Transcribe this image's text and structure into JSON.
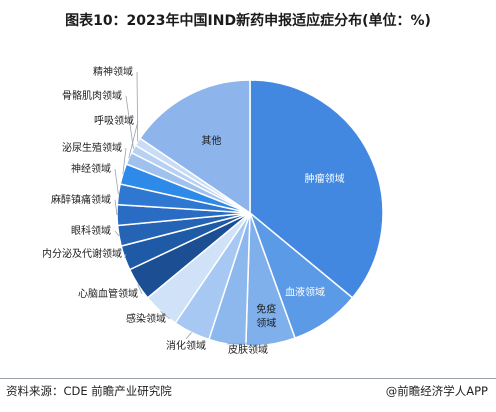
{
  "title": "图表10：2023年中国IND新药申报适应症分布(单位：%)",
  "chart_data": {
    "type": "pie",
    "title": "图表10：2023年中国IND新药申报适应症分布(单位：%)",
    "slices": [
      {
        "label": "肿瘤领域",
        "value": 36.0,
        "color": "#4288e0"
      },
      {
        "label": "血液领域",
        "value": 8.5,
        "color": "#5b9ae6"
      },
      {
        "label": "免疫\n领域",
        "value": 6.0,
        "color": "#7fb0ec"
      },
      {
        "label": "皮肤领域",
        "value": 4.5,
        "color": "#8cb8ee"
      },
      {
        "label": "消化领域",
        "value": 4.5,
        "color": "#a6c8f2"
      },
      {
        "label": "感染领域",
        "value": 4.5,
        "color": "#cfe2f8"
      },
      {
        "label": "心脑血管领域",
        "value": 4.0,
        "color": "#1b4e93"
      },
      {
        "label": "内分泌及代谢领域",
        "value": 3.0,
        "color": "#1f5aa6"
      },
      {
        "label": "眼科领域",
        "value": 2.5,
        "color": "#2563b5"
      },
      {
        "label": "麻醉镇痛领域",
        "value": 2.5,
        "color": "#2a6cc3"
      },
      {
        "label": "神经领域",
        "value": 2.5,
        "color": "#2f78d2"
      },
      {
        "label": "泌尿生殖领域",
        "value": 2.5,
        "color": "#2d8ae8"
      },
      {
        "label": "呼吸领域",
        "value": 1.5,
        "color": "#9fc1ee"
      },
      {
        "label": "骨骼肌肉领域",
        "value": 1.0,
        "color": "#b7d1f3"
      },
      {
        "label": "精神领域",
        "value": 1.0,
        "color": "#c9dcf6"
      },
      {
        "label": "其他",
        "value": 15.5,
        "color": "#8db5ec"
      }
    ]
  },
  "footer": {
    "source": "资料来源：CDE 前瞻产业研究院",
    "brand": "@前瞻经济学人APP"
  }
}
